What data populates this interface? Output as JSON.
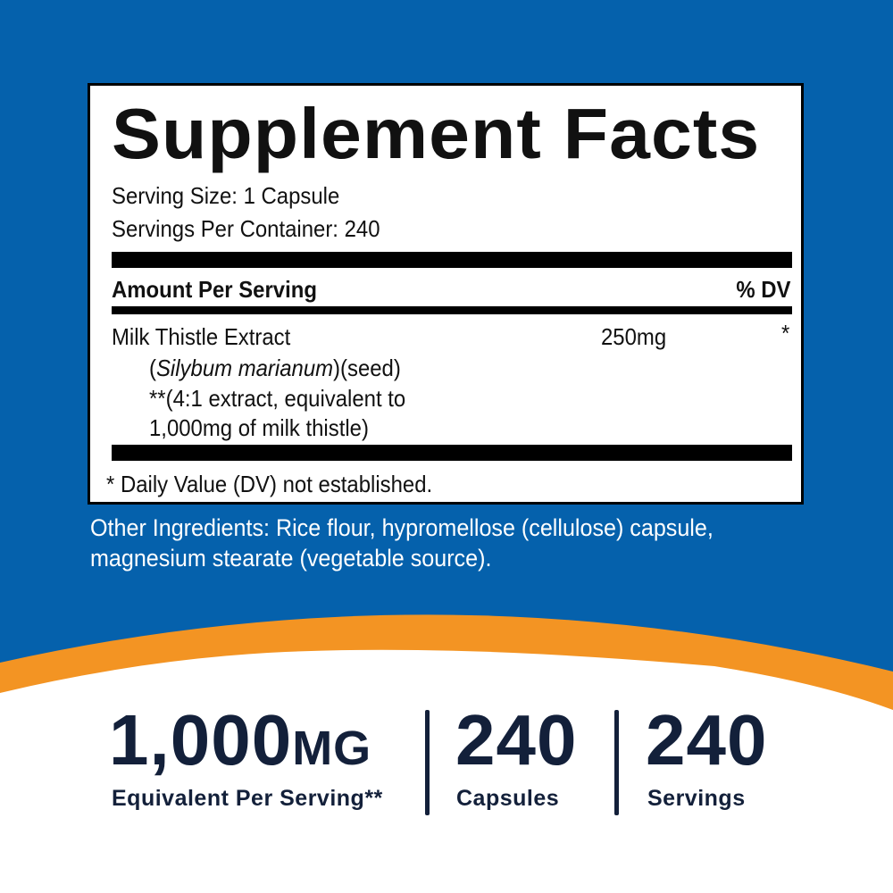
{
  "colors": {
    "blue": "#0561ac",
    "orange": "#f39423",
    "navy": "#13203a"
  },
  "facts": {
    "title": "Supplement Facts",
    "serving_size": "Serving Size: 1 Capsule",
    "servings_per_container": "Servings Per Container: 240",
    "amount_header": "Amount Per Serving",
    "dv_header": "% DV",
    "ingredient": {
      "name": "Milk Thistle Extract",
      "amount": "250mg",
      "dv": "*",
      "latin": "Silybum marianum",
      "latin_open": "(",
      "latin_close": ")(seed)",
      "note1": "**(4:1 extract, equivalent to",
      "note2": "1,000mg of milk thistle)"
    },
    "footnote": "* Daily Value (DV) not established."
  },
  "other_ingredients": {
    "line1": "Other Ingredients: Rice flour, hypromellose (cellulose) capsule,",
    "line2": "magnesium stearate (vegetable source)."
  },
  "stats": [
    {
      "value": "1,000",
      "unit": "MG",
      "label": "Equivalent Per Serving**"
    },
    {
      "value": "240",
      "label": "Capsules"
    },
    {
      "value": "240",
      "label": "Servings"
    }
  ]
}
